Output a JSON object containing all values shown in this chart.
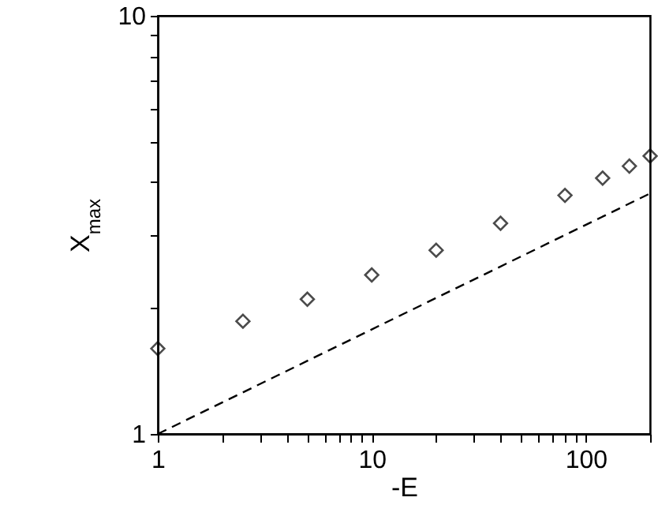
{
  "chart_data": {
    "type": "scatter",
    "xlabel": "-E",
    "ylabel": "X$_{max}$",
    "log": "xy",
    "grid": false,
    "xlim": [
      1,
      200
    ],
    "ylim": [
      1,
      10
    ],
    "xticks": [
      1,
      {
        "value": 2,
        "label": null
      },
      {
        "value": 3,
        "label": null
      },
      {
        "value": 4,
        "label": null
      },
      {
        "value": 5,
        "label": null
      },
      {
        "value": 6,
        "label": null
      },
      {
        "value": 7,
        "label": null
      },
      {
        "value": 8,
        "label": null
      },
      {
        "value": 9,
        "label": null
      },
      10,
      {
        "value": 20,
        "label": null
      },
      {
        "value": 30,
        "label": null
      },
      {
        "value": 40,
        "label": null
      },
      {
        "value": 50,
        "label": null
      },
      {
        "value": 60,
        "label": null
      },
      {
        "value": 70,
        "label": null
      },
      {
        "value": 80,
        "label": null
      },
      {
        "value": 90,
        "label": null
      },
      100,
      {
        "value": 200,
        "label": null
      }
    ],
    "yticks": [
      1,
      {
        "value": 2,
        "label": null
      },
      {
        "value": 3,
        "label": null
      },
      {
        "value": 4,
        "label": null
      },
      {
        "value": 5,
        "label": null
      },
      {
        "value": 6,
        "label": null
      },
      {
        "value": 7,
        "label": null
      },
      {
        "value": 8,
        "label": null
      },
      {
        "value": 9,
        "label": null
      },
      10
    ],
    "series": [
      {
        "color": "#000000",
        "marker": "diamond",
        "x": [
          1,
          2.5,
          5,
          10,
          20,
          40,
          80,
          120,
          160,
          200
        ],
        "values": [
          1.6,
          1.86,
          2.1,
          2.4,
          2.75,
          3.19,
          3.72,
          4.09,
          4.37,
          4.62
        ]
      },
      {
        "type": "line",
        "color": "#000000",
        "line_style": "dashed",
        "marker": "none",
        "x": [
          1,
          200
        ],
        "values": [
          1,
          3.76
        ]
      }
    ]
  }
}
